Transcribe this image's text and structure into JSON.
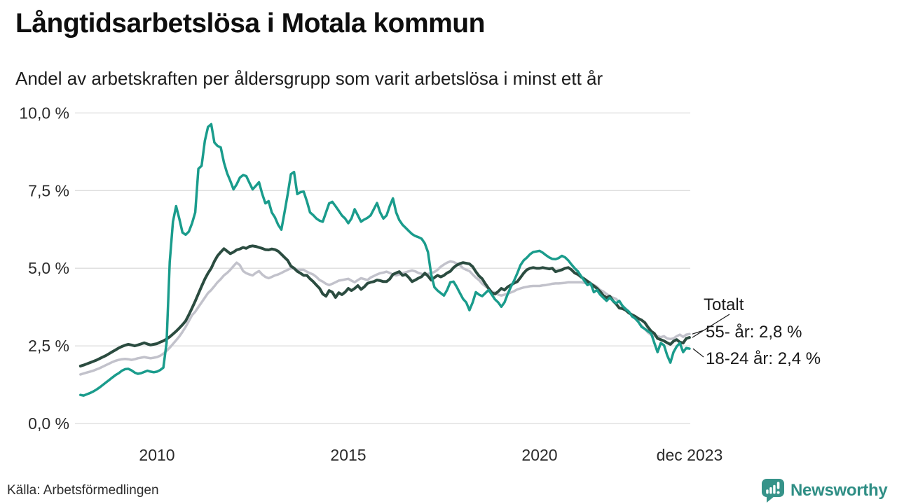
{
  "header": {
    "title": "Långtidsarbetslösa i Motala kommun",
    "subtitle": "Andel av arbetskraften per åldersgrupp som varit arbetslösa i minst ett år"
  },
  "source": {
    "label": "Källa: Arbetsförmedlingen"
  },
  "logo": {
    "brand": "Newsworthy",
    "color": "#2f8e85"
  },
  "colors": {
    "teal_line": "#1a9c8c",
    "dark_line": "#2b4c40",
    "gray_line": "#c2c2cb",
    "gridline": "#dcdcdc",
    "text": "#2b2b2b"
  },
  "chart_data": {
    "type": "line",
    "title": "Långtidsarbetslösa i Motala kommun",
    "subtitle": "Andel av arbetskraften per åldersgrupp som varit arbetslösa i minst ett år",
    "xlabel": "",
    "ylabel": "",
    "ylim": [
      0,
      10
    ],
    "x_range_years": [
      2008,
      2024
    ],
    "grid": true,
    "legend_position": "right-end-annotations",
    "x_start": 2008,
    "points_per_year": 12,
    "y_ticks": [
      {
        "value": 10,
        "label": "10,0 %"
      },
      {
        "value": 7.5,
        "label": "7,5 %"
      },
      {
        "value": 5,
        "label": "5,0 %"
      },
      {
        "value": 2.5,
        "label": "2,5 %"
      },
      {
        "value": 0,
        "label": "0,0 %"
      }
    ],
    "x_ticks": [
      {
        "t": 2010,
        "label": "2010"
      },
      {
        "t": 2015,
        "label": "2015"
      },
      {
        "t": 2020,
        "label": "2020"
      },
      {
        "t": 2023.92,
        "label": "dec 2023"
      }
    ],
    "annotations": [
      {
        "text": "Totalt",
        "series": "Totalt",
        "end_value": 2.77
      },
      {
        "text": "55- år: 2,8 %",
        "series": "55- år",
        "end_value": 2.88
      },
      {
        "text": "18-24 år: 2,4 %",
        "series": "18-24 år",
        "end_value": 2.41
      }
    ],
    "series": [
      {
        "key": "55-ar",
        "name": "55- år",
        "color": "#c2c2cb",
        "width": 3.5,
        "values": [
          1.58,
          1.61,
          1.64,
          1.67,
          1.7,
          1.74,
          1.78,
          1.83,
          1.88,
          1.93,
          1.98,
          2.02,
          2.05,
          2.07,
          2.08,
          2.07,
          2.05,
          2.07,
          2.1,
          2.12,
          2.14,
          2.12,
          2.1,
          2.12,
          2.14,
          2.18,
          2.25,
          2.34,
          2.44,
          2.56,
          2.68,
          2.8,
          2.95,
          3.11,
          3.3,
          3.49,
          3.6,
          3.75,
          3.9,
          4.05,
          4.2,
          4.3,
          4.42,
          4.55,
          4.65,
          4.77,
          4.85,
          4.95,
          5.07,
          5.18,
          5.1,
          4.91,
          4.84,
          4.8,
          4.77,
          4.85,
          4.91,
          4.8,
          4.72,
          4.68,
          4.72,
          4.77,
          4.8,
          4.85,
          4.9,
          4.95,
          5.0,
          5.0,
          4.95,
          4.95,
          4.95,
          4.89,
          4.84,
          4.8,
          4.72,
          4.62,
          4.57,
          4.5,
          4.46,
          4.5,
          4.55,
          4.6,
          4.62,
          4.64,
          4.66,
          4.6,
          4.55,
          4.62,
          4.68,
          4.65,
          4.62,
          4.7,
          4.75,
          4.8,
          4.84,
          4.86,
          4.89,
          4.85,
          4.8,
          4.77,
          4.8,
          4.84,
          4.87,
          4.9,
          4.93,
          4.9,
          4.85,
          4.82,
          4.8,
          4.82,
          4.84,
          4.88,
          4.95,
          5.05,
          5.12,
          5.18,
          5.22,
          5.2,
          5.15,
          5.1,
          5.0,
          4.95,
          4.91,
          4.8,
          4.7,
          4.62,
          4.5,
          4.42,
          4.35,
          4.25,
          4.21,
          4.15,
          4.12,
          4.15,
          4.18,
          4.22,
          4.26,
          4.32,
          4.35,
          4.38,
          4.4,
          4.42,
          4.43,
          4.43,
          4.43,
          4.45,
          4.46,
          4.48,
          4.5,
          4.51,
          4.51,
          4.52,
          4.53,
          4.55,
          4.55,
          4.55,
          4.55,
          4.55,
          4.53,
          4.5,
          4.48,
          4.46,
          4.4,
          4.3,
          4.25,
          4.17,
          4.1,
          4.05,
          4.01,
          3.9,
          3.79,
          3.7,
          3.6,
          3.49,
          3.38,
          3.27,
          3.15,
          3.04,
          2.93,
          2.85,
          2.81,
          2.81,
          2.78,
          2.81,
          2.74,
          2.72,
          2.74,
          2.81,
          2.86,
          2.79,
          2.86,
          2.88
        ]
      },
      {
        "key": "totalt",
        "name": "Totalt",
        "color": "#2b4c40",
        "width": 4,
        "values": [
          1.85,
          1.88,
          1.92,
          1.96,
          2.0,
          2.04,
          2.09,
          2.14,
          2.19,
          2.25,
          2.31,
          2.37,
          2.43,
          2.48,
          2.52,
          2.55,
          2.53,
          2.5,
          2.53,
          2.56,
          2.6,
          2.56,
          2.53,
          2.55,
          2.57,
          2.62,
          2.66,
          2.72,
          2.79,
          2.88,
          2.97,
          3.07,
          3.18,
          3.3,
          3.5,
          3.72,
          3.94,
          4.18,
          4.42,
          4.65,
          4.84,
          5.0,
          5.22,
          5.4,
          5.52,
          5.63,
          5.55,
          5.47,
          5.52,
          5.59,
          5.62,
          5.67,
          5.64,
          5.7,
          5.72,
          5.7,
          5.67,
          5.64,
          5.6,
          5.59,
          5.62,
          5.6,
          5.55,
          5.45,
          5.35,
          5.25,
          5.07,
          5.0,
          4.9,
          4.84,
          4.77,
          4.77,
          4.66,
          4.57,
          4.46,
          4.35,
          4.17,
          4.1,
          4.28,
          4.23,
          4.06,
          4.21,
          4.15,
          4.23,
          4.35,
          4.28,
          4.35,
          4.44,
          4.32,
          4.4,
          4.51,
          4.55,
          4.57,
          4.62,
          4.6,
          4.57,
          4.57,
          4.65,
          4.8,
          4.85,
          4.89,
          4.77,
          4.8,
          4.7,
          4.57,
          4.62,
          4.68,
          4.73,
          4.84,
          4.75,
          4.62,
          4.7,
          4.77,
          4.72,
          4.77,
          4.85,
          4.9,
          5.02,
          5.1,
          5.15,
          5.18,
          5.16,
          5.14,
          5.05,
          4.89,
          4.75,
          4.66,
          4.5,
          4.35,
          4.21,
          4.17,
          4.25,
          4.35,
          4.3,
          4.4,
          4.46,
          4.52,
          4.57,
          4.7,
          4.84,
          4.95,
          5.0,
          5.02,
          5.0,
          5.0,
          5.02,
          5.0,
          4.98,
          5.0,
          4.89,
          4.92,
          4.95,
          5.0,
          5.02,
          4.95,
          4.85,
          4.8,
          4.72,
          4.66,
          4.58,
          4.51,
          4.43,
          4.35,
          4.25,
          4.12,
          4.05,
          4.1,
          3.95,
          3.85,
          3.72,
          3.7,
          3.65,
          3.56,
          3.5,
          3.45,
          3.38,
          3.33,
          3.25,
          3.1,
          2.97,
          2.9,
          2.74,
          2.7,
          2.66,
          2.6,
          2.55,
          2.65,
          2.7,
          2.62,
          2.59,
          2.74,
          2.77
        ]
      },
      {
        "key": "18-24-ar",
        "name": "18-24 år",
        "color": "#1a9c8c",
        "width": 3.5,
        "values": [
          0.92,
          0.9,
          0.94,
          0.98,
          1.03,
          1.09,
          1.16,
          1.24,
          1.32,
          1.4,
          1.48,
          1.56,
          1.62,
          1.7,
          1.75,
          1.76,
          1.71,
          1.64,
          1.6,
          1.62,
          1.66,
          1.7,
          1.67,
          1.65,
          1.67,
          1.72,
          1.8,
          2.6,
          5.2,
          6.5,
          7.0,
          6.6,
          6.15,
          6.08,
          6.18,
          6.45,
          6.8,
          8.2,
          8.3,
          9.1,
          9.55,
          9.64,
          9.05,
          8.94,
          8.89,
          8.4,
          8.06,
          7.81,
          7.54,
          7.7,
          7.92,
          8.0,
          7.97,
          7.75,
          7.54,
          7.65,
          7.77,
          7.4,
          7.09,
          7.16,
          6.8,
          6.64,
          6.4,
          6.24,
          6.8,
          7.39,
          8.03,
          8.1,
          7.39,
          7.45,
          7.47,
          7.16,
          6.8,
          6.71,
          6.6,
          6.53,
          6.5,
          6.8,
          7.09,
          7.14,
          7.0,
          6.85,
          6.7,
          6.6,
          6.45,
          6.6,
          6.9,
          6.7,
          6.5,
          6.57,
          6.62,
          6.7,
          6.9,
          7.1,
          6.8,
          6.6,
          6.7,
          7.0,
          7.25,
          6.8,
          6.55,
          6.4,
          6.3,
          6.2,
          6.1,
          6.04,
          6.0,
          5.95,
          5.8,
          5.52,
          4.8,
          4.39,
          4.28,
          4.2,
          4.12,
          4.3,
          4.55,
          4.57,
          4.4,
          4.2,
          4.01,
          3.9,
          3.65,
          3.9,
          4.23,
          4.15,
          4.1,
          4.2,
          4.3,
          4.15,
          4.0,
          3.9,
          3.76,
          3.9,
          4.17,
          4.4,
          4.6,
          4.84,
          5.1,
          5.25,
          5.34,
          5.45,
          5.52,
          5.54,
          5.56,
          5.5,
          5.42,
          5.35,
          5.3,
          5.29,
          5.33,
          5.4,
          5.35,
          5.25,
          5.12,
          5.0,
          4.9,
          4.75,
          4.6,
          4.46,
          4.51,
          4.23,
          4.3,
          4.15,
          4.05,
          3.95,
          4.05,
          3.95,
          3.87,
          3.95,
          3.79,
          3.68,
          3.6,
          3.45,
          3.38,
          3.27,
          3.11,
          3.05,
          2.97,
          2.9,
          2.59,
          2.3,
          2.59,
          2.52,
          2.2,
          1.96,
          2.3,
          2.48,
          2.59,
          2.3,
          2.43,
          2.41
        ]
      }
    ]
  }
}
